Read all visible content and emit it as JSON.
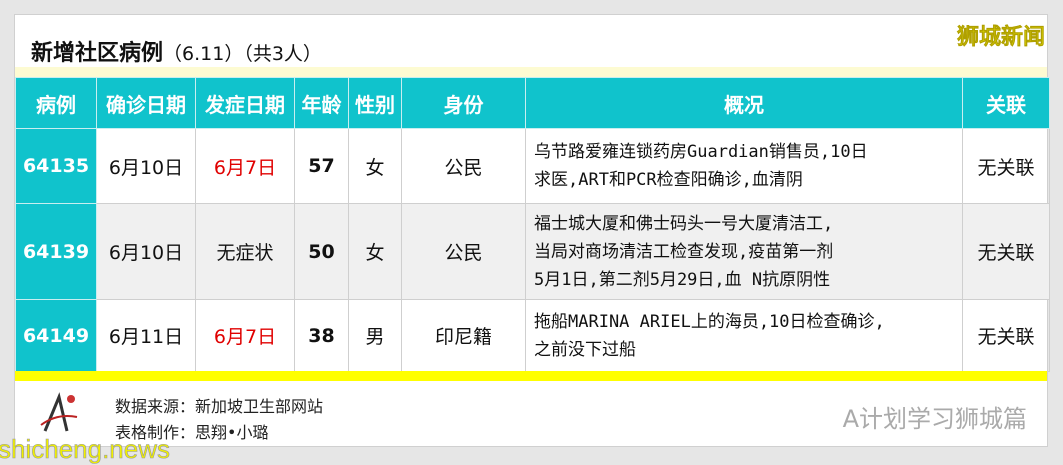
{
  "title": {
    "main": "新增社区病例",
    "date": "（6.11）",
    "count": "（共3人）"
  },
  "brand": "狮城新闻",
  "headers": [
    "病例",
    "确诊日期",
    "发症日期",
    "年龄",
    "性别",
    "身份",
    "概况",
    "关联"
  ],
  "rows": [
    {
      "id": "64135",
      "confirmed": "6月10日",
      "onset": "6月7日",
      "age": "57",
      "gender": "女",
      "status": "公民",
      "summary": [
        "乌节路爱雍连锁药房Guardian销售员,10日",
        "求医,ART和PCR检查阳确诊,血清阴"
      ],
      "link": "无关联"
    },
    {
      "id": "64139",
      "confirmed": "6月10日",
      "onset": "无症状",
      "age": "50",
      "gender": "女",
      "status": "公民",
      "summary": [
        "福士城大厦和佛士码头一号大厦清洁工,",
        "当局对商场清洁工检查发现,疫苗第一剂",
        "5月1日,第二剂5月29日,血 N抗原阴性"
      ],
      "link": "无关联"
    },
    {
      "id": "64149",
      "confirmed": "6月11日",
      "onset": "6月7日",
      "age": "38",
      "gender": "男",
      "status": "印尼籍",
      "summary": [
        "拖船MARINA ARIEL上的海员,10日检查确诊,",
        "之前没下过船"
      ],
      "link": "无关联"
    }
  ],
  "footer": {
    "source": "数据来源：新加坡卫生部网站",
    "maker": "表格制作：思翔•小璐",
    "watermark": "A计划学习狮城篇",
    "site": "shicheng.news"
  },
  "colors": {
    "header": "#10c3cc",
    "onset_red": "#e00000",
    "bar": "#ffff00"
  }
}
